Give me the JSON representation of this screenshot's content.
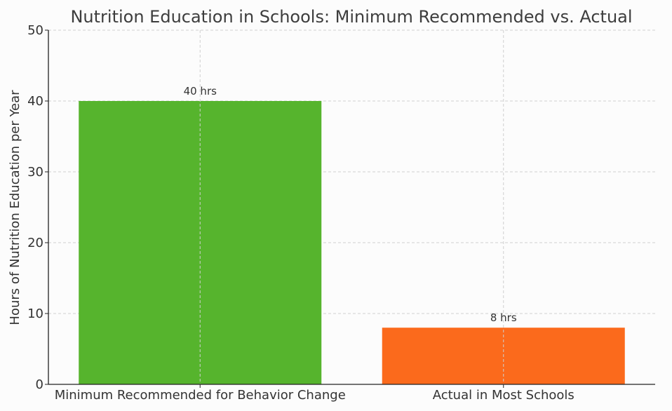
{
  "chart_data": {
    "type": "bar",
    "title": "Nutrition Education in Schools: Minimum Recommended vs. Actual",
    "xlabel": "",
    "ylabel": "Hours of Nutrition Education per Year",
    "categories": [
      "Minimum Recommended for Behavior Change",
      "Actual in Most Schools"
    ],
    "values": [
      40,
      8
    ],
    "data_labels": [
      "40 hrs",
      "8 hrs"
    ],
    "colors": [
      "#56b42d",
      "#fb6a1c"
    ],
    "ylim": [
      0,
      50
    ],
    "yticks": [
      "0",
      "10",
      "20",
      "30",
      "40",
      "50"
    ],
    "grid": true
  }
}
